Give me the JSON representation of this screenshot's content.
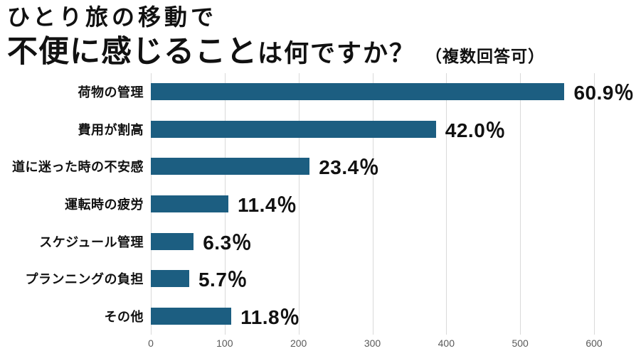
{
  "title": {
    "line1": "ひとり旅の移動で",
    "line2_emphasis": "不便に感じること",
    "line2_rest": "は何ですか？",
    "note": "（複数回答可）"
  },
  "colors": {
    "bar": "#1c5e81",
    "grid": "#d9d9d9",
    "axis_text": "#5a5a5a",
    "text": "#111111"
  },
  "chart_data": {
    "type": "bar",
    "orientation": "horizontal",
    "title": "ひとり旅の移動で不便に感じることは何ですか？（複数回答可）",
    "categories": [
      "荷物の管理",
      "費用が割高",
      "道に迷った時の不安感",
      "運転時の疲労",
      "スケジュール管理",
      "プランニングの負担",
      "その他"
    ],
    "values": [
      560,
      386,
      215,
      105,
      58,
      52,
      109
    ],
    "value_labels": [
      "60.9％",
      "42.0％",
      "23.4％",
      "11.4％",
      "6.3％",
      "5.7％",
      "11.8％"
    ],
    "percentages": [
      60.9,
      42.0,
      23.4,
      11.4,
      6.3,
      5.7,
      11.8
    ],
    "xlabel": "",
    "ylabel": "",
    "xlim": [
      0,
      600
    ],
    "x_ticks": [
      0,
      100,
      200,
      300,
      400,
      500,
      600
    ],
    "grid": true,
    "legend": false
  }
}
